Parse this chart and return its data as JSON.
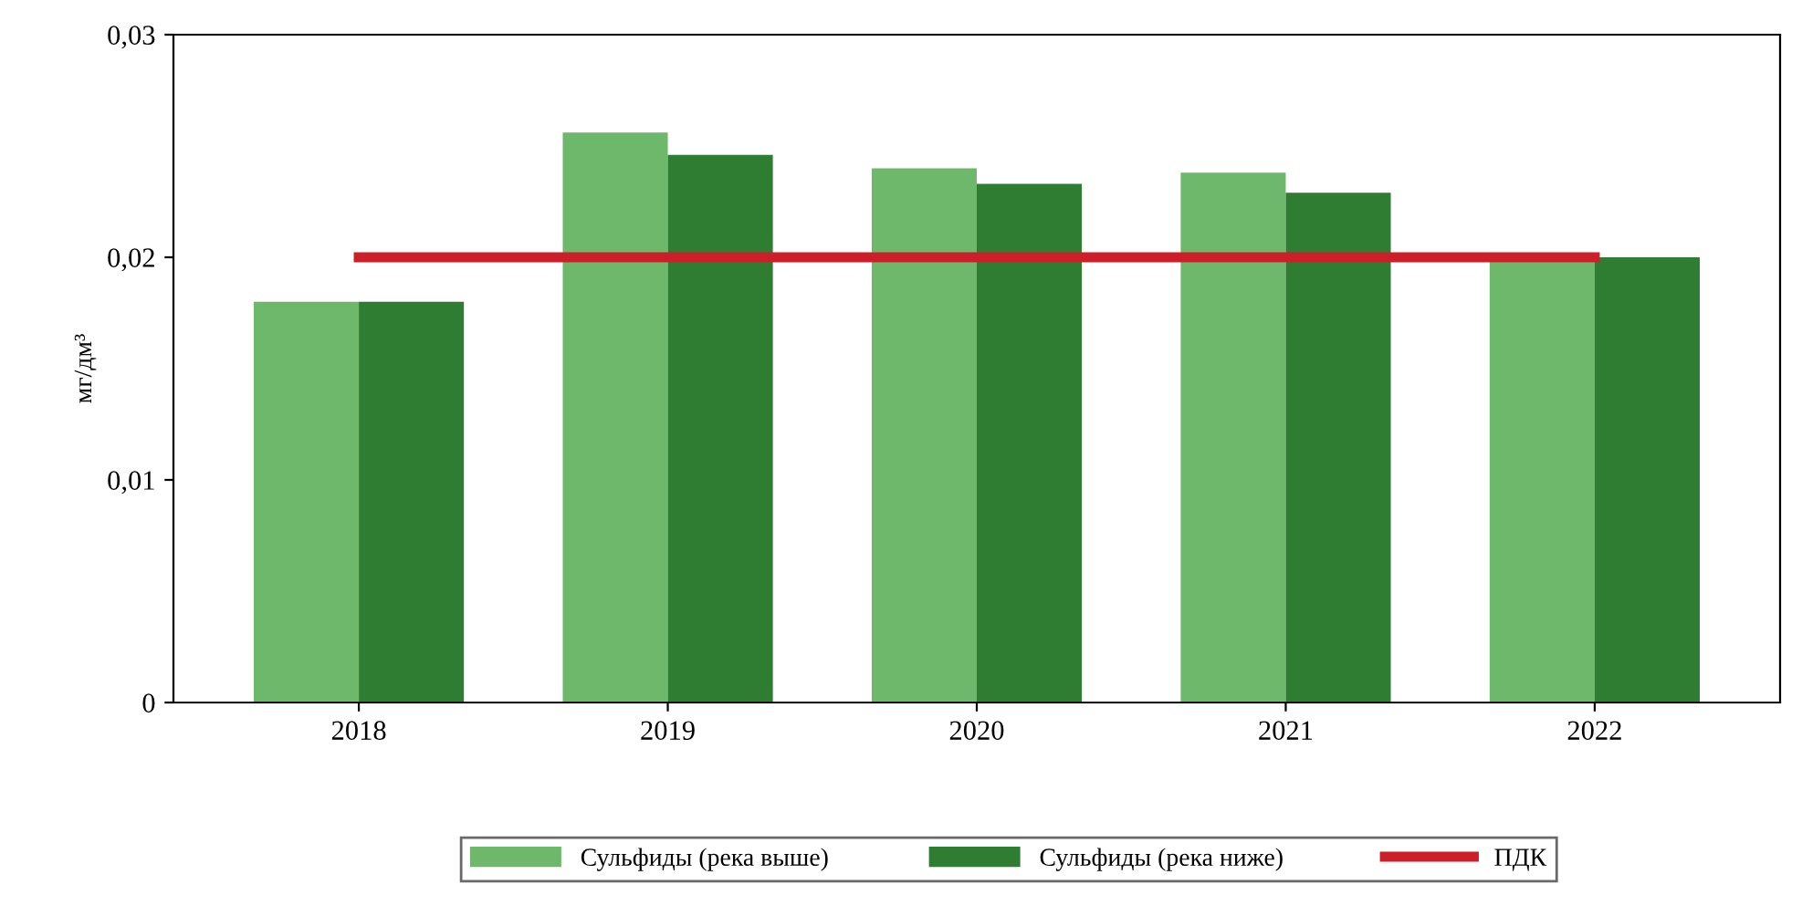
{
  "chart_data": {
    "type": "bar",
    "ylabel": "мг/дм³",
    "categories": [
      "2018",
      "2019",
      "2020",
      "2021",
      "2022"
    ],
    "series": [
      {
        "name": "Сульфиды (река выше)",
        "color": "#6db86a",
        "values": [
          0.018,
          0.0256,
          0.024,
          0.0238,
          0.02
        ]
      },
      {
        "name": "Сульфиды (река ниже)",
        "color": "#2f7d32",
        "values": [
          0.018,
          0.0246,
          0.0233,
          0.0229,
          0.02
        ]
      },
      {
        "name": "ПДК",
        "type": "line",
        "color": "#cc1f2a",
        "values": [
          0.02,
          0.02,
          0.02,
          0.02,
          0.02
        ]
      }
    ],
    "ylim": [
      0,
      0.03
    ],
    "yticks": [
      {
        "value": 0,
        "label": "0"
      },
      {
        "value": 0.01,
        "label": "0,01"
      },
      {
        "value": 0.02,
        "label": "0,02"
      },
      {
        "value": 0.03,
        "label": "0,03"
      }
    ],
    "grid": false,
    "legend": "bottom",
    "marker": "none"
  }
}
